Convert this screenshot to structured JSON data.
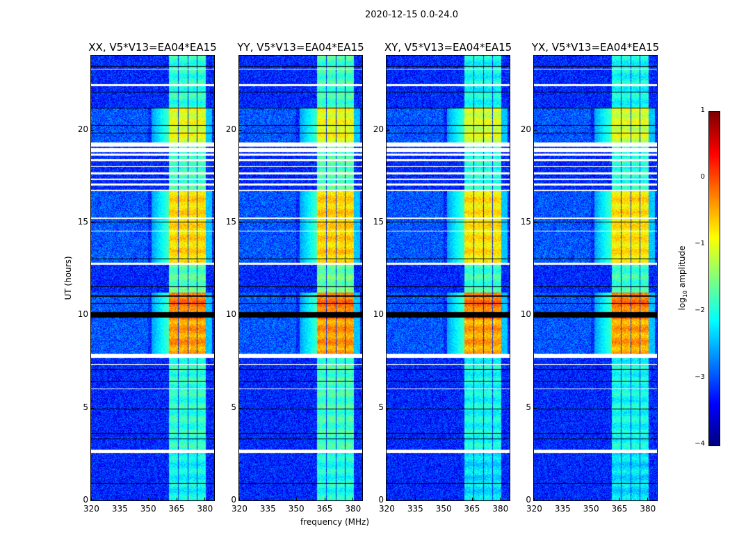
{
  "chart_data": {
    "type": "heatmap",
    "title": "2020-12-15 0.0-24.0",
    "xlabel": "frequency (MHz)",
    "ylabel": "UT (hours)",
    "xlim": [
      320,
      385
    ],
    "ylim": [
      0,
      24
    ],
    "xticks": [
      "320",
      "335",
      "350",
      "365",
      "380"
    ],
    "yticks": [
      "0",
      "5",
      "10",
      "15",
      "20"
    ],
    "xtick_values": [
      320,
      335,
      350,
      365,
      380
    ],
    "ytick_values": [
      0,
      5,
      10,
      15,
      20
    ],
    "colorbar": {
      "label": "log10 amplitude",
      "label_main": "log",
      "label_sub": "10",
      "label_rest": " amplitude",
      "range": [
        -4,
        1
      ],
      "ticks": [
        "1",
        "0",
        "−1",
        "−2",
        "−3",
        "−4"
      ],
      "tick_values": [
        1,
        0,
        -1,
        -2,
        -3,
        -4
      ],
      "colormap": "jet"
    },
    "panels": [
      {
        "title": "XX, V5*V13=EA04*EA15",
        "scale": 1.0
      },
      {
        "title": "YY, V5*V13=EA04*EA15",
        "scale": 1.05
      },
      {
        "title": "XY, V5*V13=EA04*EA15",
        "scale": 0.92
      },
      {
        "title": "YX, V5*V13=EA04*EA15",
        "scale": 0.92
      }
    ],
    "background_level": -3.2,
    "rfi_columns_mhz": [
      [
        361,
        366
      ],
      [
        366.3,
        371
      ],
      [
        371.3,
        376
      ],
      [
        376.3,
        380.5
      ]
    ],
    "rfi_levels_by_time": [
      {
        "from": 0,
        "to": 2.6,
        "level": -2.1
      },
      {
        "from": 2.6,
        "to": 7.8,
        "level": -1.9
      },
      {
        "from": 7.8,
        "to": 9.8,
        "level": -0.4
      },
      {
        "from": 9.8,
        "to": 11.2,
        "level": -0.2
      },
      {
        "from": 11.2,
        "to": 12.7,
        "level": -1.7
      },
      {
        "from": 12.7,
        "to": 16.7,
        "level": -0.7
      },
      {
        "from": 16.7,
        "to": 19.3,
        "level": -1.8
      },
      {
        "from": 19.3,
        "to": 21.2,
        "level": -1.0
      },
      {
        "from": 21.2,
        "to": 24,
        "level": -1.9
      }
    ],
    "flagged_white_hours": [
      [
        2.55,
        2.72
      ],
      [
        7.7,
        7.9
      ],
      [
        12.72,
        12.82
      ],
      [
        17.0,
        17.1
      ],
      [
        17.3,
        17.35
      ],
      [
        17.6,
        17.7
      ],
      [
        18.0,
        18.05
      ],
      [
        18.3,
        18.4
      ],
      [
        18.6,
        18.7
      ],
      [
        18.8,
        19.0
      ],
      [
        19.1,
        19.3
      ],
      [
        22.35,
        22.45
      ],
      [
        23.25,
        23.3
      ],
      [
        14.5,
        14.55
      ],
      [
        15.2,
        15.25
      ],
      [
        16.7,
        16.78
      ],
      [
        6.0,
        6.05
      ],
      [
        7.3,
        7.35
      ]
    ],
    "flagged_black_hours": [
      [
        9.85,
        10.15
      ],
      [
        0.9,
        0.95
      ],
      [
        3.3,
        3.35
      ],
      [
        3.6,
        3.65
      ],
      [
        4.9,
        4.95
      ],
      [
        6.4,
        6.45
      ],
      [
        7.05,
        7.1
      ],
      [
        10.6,
        10.65
      ],
      [
        11.0,
        11.05
      ],
      [
        11.5,
        11.55
      ],
      [
        13.0,
        13.05
      ],
      [
        15.0,
        15.05
      ],
      [
        19.8,
        19.85
      ],
      [
        20.2,
        20.25
      ],
      [
        21.15,
        21.2
      ],
      [
        22.0,
        22.05
      ],
      [
        23.4,
        23.45
      ]
    ]
  }
}
